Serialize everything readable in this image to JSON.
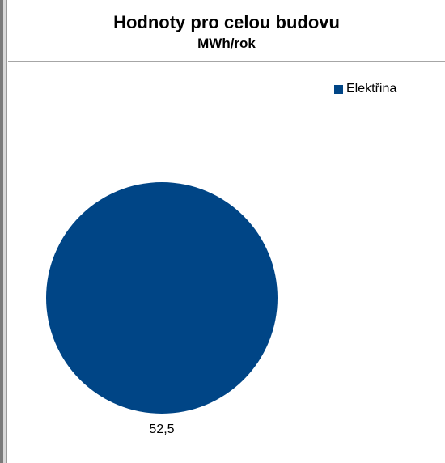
{
  "chart_data": {
    "type": "pie",
    "title": "Hodnoty pro celou budovu",
    "subtitle": "MWh/rok",
    "slices": [
      {
        "label": "Elektřina",
        "value": 52.5,
        "value_label": "52,5",
        "color": "#004586"
      }
    ],
    "legend_position": "top-right"
  }
}
